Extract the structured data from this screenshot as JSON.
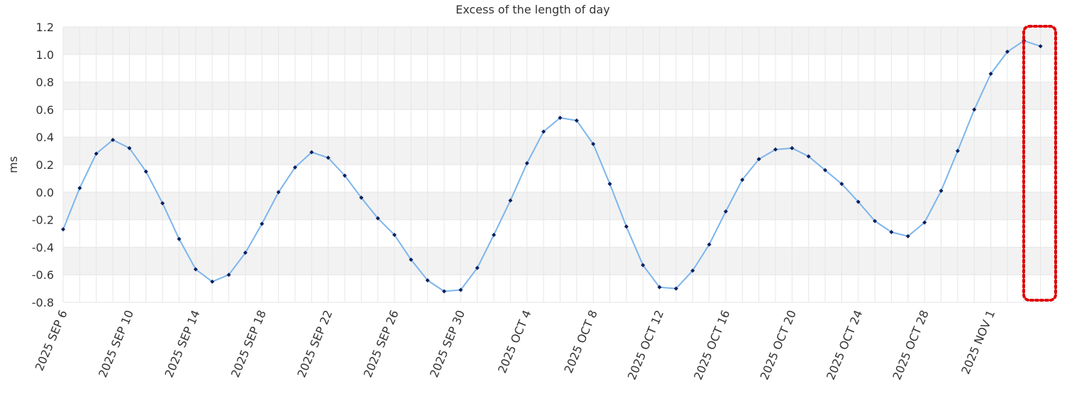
{
  "colors": {
    "line": "#7cb5ec",
    "marker": "#0d1f5c",
    "band": "#f2f2f2",
    "grid": "#e6e6e6",
    "axis_text": "#333333",
    "highlight_box": "#e00000"
  },
  "chart_data": {
    "type": "line",
    "title": "Excess of the length of day",
    "xlabel": "",
    "ylabel": "ms",
    "ylim": [
      -0.8,
      1.2
    ],
    "yticks": [
      "-0.8",
      "-0.6",
      "-0.4",
      "-0.2",
      "0.0",
      "0.2",
      "0.4",
      "0.6",
      "0.8",
      "1.0",
      "1.2"
    ],
    "grid": true,
    "alternate_bands": true,
    "xtick_labels": [
      "2025 SEP 6",
      "2025 SEP 10",
      "2025 SEP 14",
      "2025 SEP 18",
      "2025 SEP 22",
      "2025 SEP 26",
      "2025 SEP 30",
      "2025 OCT 4",
      "2025 OCT 8",
      "2025 OCT 12",
      "2025 OCT 16",
      "2025 OCT 20",
      "2025 OCT 24",
      "2025 OCT 28",
      "2025 NOV 1"
    ],
    "x": [
      "2025-09-06",
      "2025-09-07",
      "2025-09-08",
      "2025-09-09",
      "2025-09-10",
      "2025-09-11",
      "2025-09-12",
      "2025-09-13",
      "2025-09-14",
      "2025-09-15",
      "2025-09-16",
      "2025-09-17",
      "2025-09-18",
      "2025-09-19",
      "2025-09-20",
      "2025-09-21",
      "2025-09-22",
      "2025-09-23",
      "2025-09-24",
      "2025-09-25",
      "2025-09-26",
      "2025-09-27",
      "2025-09-28",
      "2025-09-29",
      "2025-09-30",
      "2025-10-01",
      "2025-10-02",
      "2025-10-03",
      "2025-10-04",
      "2025-10-05",
      "2025-10-06",
      "2025-10-07",
      "2025-10-08",
      "2025-10-09",
      "2025-10-10",
      "2025-10-11",
      "2025-10-12",
      "2025-10-13",
      "2025-10-14",
      "2025-10-15",
      "2025-10-16",
      "2025-10-17",
      "2025-10-18",
      "2025-10-19",
      "2025-10-20",
      "2025-10-21",
      "2025-10-22",
      "2025-10-23",
      "2025-10-24",
      "2025-10-25",
      "2025-10-26",
      "2025-10-27",
      "2025-10-28",
      "2025-10-29",
      "2025-10-30",
      "2025-10-31",
      "2025-11-01",
      "2025-11-02",
      "2025-11-03",
      "2025-11-04"
    ],
    "series": [
      {
        "values": [
          -0.27,
          0.03,
          0.28,
          0.38,
          0.32,
          0.15,
          -0.08,
          -0.34,
          -0.56,
          -0.65,
          -0.6,
          -0.44,
          -0.23,
          0.0,
          0.18,
          0.29,
          0.25,
          0.12,
          -0.04,
          -0.19,
          -0.31,
          -0.49,
          -0.64,
          -0.72,
          -0.71,
          -0.55,
          -0.31,
          -0.06,
          0.21,
          0.44,
          0.54,
          0.52,
          0.35,
          0.06,
          -0.25,
          -0.53,
          -0.69,
          -0.7,
          -0.57,
          -0.38,
          -0.14,
          0.09,
          0.24,
          0.31,
          0.32,
          0.26,
          0.16,
          0.06,
          -0.07,
          -0.21,
          -0.29,
          -0.32,
          -0.22,
          0.01,
          0.3,
          0.6,
          0.86,
          1.02,
          1.1,
          1.06
        ]
      }
    ],
    "annotations": [
      {
        "type": "dotted-box",
        "target": "last two points",
        "color": "#e00000"
      }
    ]
  }
}
